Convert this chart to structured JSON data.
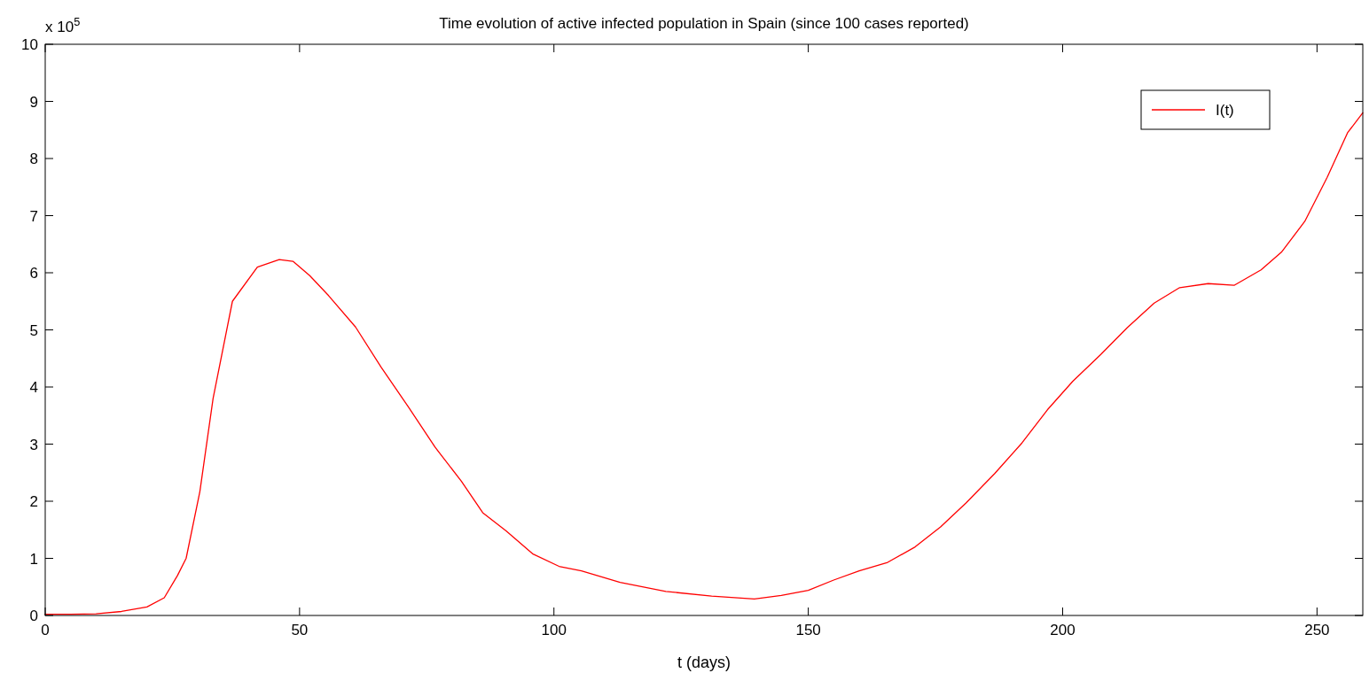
{
  "chart_data": {
    "type": "line",
    "title": "Time evolution of active infected population in Spain (since 100 cases reported)",
    "xlabel": "t (days)",
    "annotations": [
      "x 10$^{5}$"
    ],
    "xlim": [
      0,
      259
    ],
    "xticks": [
      0,
      50,
      100,
      150,
      200,
      250
    ],
    "ylim": [
      0,
      10
    ],
    "yticks": [
      0,
      1,
      2,
      3,
      4,
      5,
      6,
      7,
      8,
      9,
      10
    ],
    "grid": false,
    "legend": "top right",
    "line_style": "solid",
    "marker": "none",
    "series": [
      {
        "name": "I(t)",
        "color": "#ff0000",
        "x": [
          0,
          5,
          10,
          15,
          20,
          23.4,
          26,
          27.7,
          30.4,
          33,
          36.8,
          41.7,
          46,
          48.7,
          52,
          55.7,
          61,
          66,
          71.4,
          76.6,
          81.8,
          86,
          90.6,
          95.8,
          101,
          105.4,
          113,
          122,
          131,
          139.4,
          144.7,
          150,
          155,
          160,
          165.6,
          171,
          176,
          181,
          186.6,
          192,
          197,
          202,
          207.5,
          212.7,
          218,
          223,
          228.6,
          233.7,
          239,
          243,
          247.6,
          252,
          256,
          259
        ],
        "values": [
          0.02,
          0.02,
          0.03,
          0.07,
          0.15,
          0.31,
          0.7,
          1.0,
          2.17,
          3.8,
          5.5,
          6.1,
          6.23,
          6.2,
          5.95,
          5.6,
          5.05,
          4.35,
          3.65,
          2.95,
          2.35,
          1.8,
          1.48,
          1.08,
          0.86,
          0.78,
          0.58,
          0.42,
          0.34,
          0.29,
          0.35,
          0.44,
          0.62,
          0.78,
          0.93,
          1.2,
          1.55,
          1.97,
          2.48,
          3.02,
          3.6,
          4.1,
          4.57,
          5.04,
          5.47,
          5.74,
          5.81,
          5.78,
          6.05,
          6.36,
          6.9,
          7.67,
          8.45,
          8.8
        ]
      }
    ]
  }
}
